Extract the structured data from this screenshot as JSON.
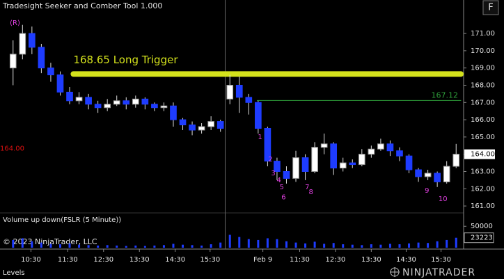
{
  "title": "Tradesight Seeker and Comber Tool 1.000",
  "corner_button": "F",
  "copyright": "© 2023 NinjaTrader, LLC",
  "footer": "Levels",
  "logo": "NINJATRADER",
  "chart_data": {
    "type": "candlestick",
    "open": [
      169.0,
      169.8,
      171.0,
      170.2,
      169.0,
      168.6,
      167.6,
      167.1,
      167.3,
      166.9,
      166.7,
      166.9,
      167.1,
      166.9,
      167.2,
      166.9,
      166.7,
      166.8,
      166.0,
      165.7,
      165.4,
      165.6,
      165.9,
      167.2,
      168.0,
      167.3,
      167.0,
      165.5,
      163.6,
      163.0,
      162.6,
      163.8,
      163.0,
      164.4,
      164.6,
      163.2,
      163.5,
      163.4,
      164.0,
      164.3,
      164.6,
      164.2,
      163.9,
      163.1,
      162.7,
      162.9,
      162.4,
      163.3
    ],
    "high": [
      170.6,
      171.5,
      171.4,
      170.4,
      169.3,
      168.8,
      167.9,
      167.6,
      167.5,
      167.1,
      167.2,
      167.4,
      167.3,
      167.4,
      167.3,
      167.0,
      167.0,
      167.0,
      166.1,
      165.9,
      165.8,
      166.2,
      166.0,
      168.6,
      168.5,
      167.5,
      167.1,
      165.6,
      163.8,
      163.3,
      164.2,
      164.0,
      164.7,
      165.2,
      164.7,
      163.8,
      163.7,
      164.3,
      164.5,
      164.9,
      164.8,
      164.4,
      164.0,
      163.2,
      163.1,
      163.0,
      163.6,
      164.6
    ],
    "low": [
      168.0,
      169.5,
      169.8,
      168.7,
      168.2,
      167.4,
      166.9,
      166.9,
      166.6,
      166.4,
      166.5,
      166.8,
      166.6,
      166.7,
      166.6,
      166.5,
      166.5,
      165.6,
      165.4,
      165.1,
      165.2,
      165.4,
      165.3,
      166.9,
      166.4,
      166.3,
      165.2,
      163.3,
      162.5,
      162.3,
      162.4,
      162.5,
      162.9,
      164.0,
      162.8,
      163.0,
      163.2,
      163.3,
      163.8,
      164.2,
      163.9,
      163.6,
      162.9,
      162.4,
      162.5,
      162.1,
      162.3,
      163.2
    ],
    "close": [
      169.8,
      171.0,
      170.2,
      169.0,
      168.6,
      167.6,
      167.1,
      167.3,
      166.9,
      166.7,
      166.9,
      167.1,
      166.9,
      167.2,
      166.9,
      166.7,
      166.8,
      166.0,
      165.7,
      165.4,
      165.6,
      165.9,
      165.5,
      168.0,
      167.3,
      167.0,
      165.5,
      163.6,
      163.0,
      162.6,
      163.8,
      163.0,
      164.4,
      164.6,
      163.2,
      163.5,
      163.4,
      164.0,
      164.3,
      164.6,
      164.2,
      163.9,
      163.1,
      162.7,
      162.9,
      162.4,
      163.3,
      164.0
    ],
    "up_color": "#ffffff",
    "down_color": "#1e3cff",
    "xlim": [
      0,
      48
    ],
    "xticks": [
      {
        "value": 2.4,
        "label": "10:30"
      },
      {
        "value": 6.3,
        "label": "11:30"
      },
      {
        "value": 10.1,
        "label": "12:30"
      },
      {
        "value": 13.9,
        "label": "13:30"
      },
      {
        "value": 17.7,
        "label": "14:30"
      },
      {
        "value": 21.4,
        "label": "15:30"
      },
      {
        "value": 27.0,
        "label": "Feb 9"
      },
      {
        "value": 30.9,
        "label": "11:30"
      },
      {
        "value": 34.7,
        "label": "12:30"
      },
      {
        "value": 38.5,
        "label": "13:30"
      },
      {
        "value": 42.2,
        "label": "14:30"
      },
      {
        "value": 45.9,
        "label": "15:30"
      }
    ],
    "separator": 23,
    "ylim": [
      160.64,
      172.94
    ],
    "yticks": [
      {
        "value": 161,
        "label": "161.00"
      },
      {
        "value": 162,
        "label": "162.00"
      },
      {
        "value": 163,
        "label": "163.00"
      },
      {
        "value": 164,
        "label": "164.00"
      },
      {
        "value": 165,
        "label": "165.00"
      },
      {
        "value": 166,
        "label": "166.00"
      },
      {
        "value": 167,
        "label": "167.00"
      },
      {
        "value": 168,
        "label": "168.00"
      },
      {
        "value": 169,
        "label": "169.00"
      },
      {
        "value": 170,
        "label": "170.00"
      },
      {
        "value": 171,
        "label": "171.00"
      }
    ],
    "last_price": {
      "value": 164,
      "label": "164.00"
    },
    "left_price": {
      "value": 164,
      "label": "164.00",
      "color": "#e01010"
    },
    "levels": [
      {
        "value": 168.65,
        "label": "168.65 Long Trigger",
        "color": "#d4e21c",
        "start": 6.9
      },
      {
        "value": 167.12,
        "label": "167.12",
        "color": "#2e9e3a",
        "start": 26.4
      }
    ],
    "annotations": [
      {
        "text": "(R)",
        "x": 0.7,
        "y": 171.6
      },
      {
        "text": 1,
        "x": 26.7,
        "y": 165.0
      },
      {
        "text": 2,
        "x": 27.8,
        "y": 163.7
      },
      {
        "text": 3,
        "x": 28.1,
        "y": 162.9
      },
      {
        "text": 4,
        "x": 28.7,
        "y": 162.5
      },
      {
        "text": 5,
        "x": 29.0,
        "y": 162.1
      },
      {
        "text": 6,
        "x": 29.2,
        "y": 161.5
      },
      {
        "text": 7,
        "x": 31.7,
        "y": 162.1
      },
      {
        "text": 8,
        "x": 32.1,
        "y": 161.8
      },
      {
        "text": 9,
        "x": 44.4,
        "y": 161.9
      },
      {
        "text": 10,
        "x": 46.1,
        "y": 161.4
      }
    ],
    "annotation_color": "#e040e0",
    "volume": {
      "title": "Volume up down(FSLR (5 Minute))",
      "values": [
        18000,
        22000,
        15000,
        12000,
        9000,
        8000,
        10000,
        7000,
        6000,
        5000,
        6000,
        5000,
        4000,
        5000,
        4000,
        5000,
        6000,
        9000,
        7000,
        6000,
        5000,
        8000,
        12000,
        30000,
        25000,
        20000,
        18000,
        22000,
        20000,
        15000,
        12000,
        10000,
        14000,
        9000,
        11000,
        8000,
        7000,
        6000,
        8000,
        7000,
        9000,
        8000,
        10000,
        12000,
        11000,
        15000,
        18000,
        23223
      ],
      "color": "#1e3cff",
      "ylim": [
        0,
        78000
      ],
      "yticks": [
        50000
      ],
      "last": 23223
    }
  }
}
